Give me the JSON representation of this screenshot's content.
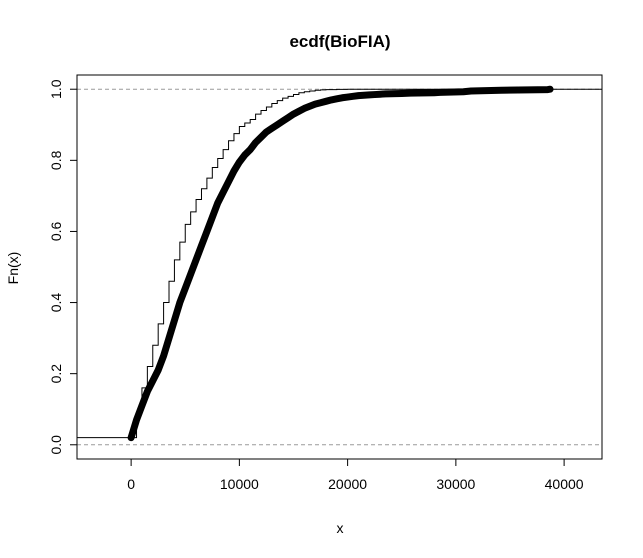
{
  "chart_data": {
    "type": "line",
    "title": "ecdf(BioFIA)",
    "xlabel": "x",
    "ylabel": "Fn(x)",
    "xlim": [
      -5000,
      43500
    ],
    "ylim": [
      -0.04,
      1.04
    ],
    "x_ticks": [
      0,
      10000,
      20000,
      30000,
      40000
    ],
    "x_tick_labels": [
      "0",
      "10000",
      "20000",
      "30000",
      "40000"
    ],
    "y_ticks": [
      0.0,
      0.2,
      0.4,
      0.6,
      0.8,
      1.0
    ],
    "y_tick_labels": [
      "0.0",
      "0.2",
      "0.4",
      "0.6",
      "0.8",
      "1.0"
    ],
    "reference_lines": [
      0,
      1
    ],
    "grid": false,
    "series": [
      {
        "style": "step-line",
        "x": [
          0,
          500,
          1000,
          1500,
          2000,
          2500,
          3000,
          3500,
          4000,
          4500,
          5000,
          5500,
          6000,
          6500,
          7000,
          7500,
          8000,
          8500,
          9000,
          9500,
          10000,
          10500,
          11000,
          11500,
          12000,
          12500,
          13000,
          13500,
          14000,
          14500,
          15000,
          15500,
          16000,
          16500,
          17000,
          17500,
          18000,
          19000,
          20000,
          22000,
          38500
        ],
        "y": [
          0.02,
          0.09,
          0.16,
          0.22,
          0.28,
          0.34,
          0.4,
          0.46,
          0.52,
          0.57,
          0.62,
          0.655,
          0.69,
          0.72,
          0.75,
          0.78,
          0.805,
          0.83,
          0.855,
          0.875,
          0.895,
          0.905,
          0.915,
          0.93,
          0.94,
          0.95,
          0.96,
          0.968,
          0.975,
          0.98,
          0.985,
          0.99,
          0.993,
          0.995,
          0.997,
          0.998,
          0.999,
          0.9995,
          1.0,
          1.0,
          1.0
        ]
      },
      {
        "style": "points",
        "x": [
          0,
          500,
          1000,
          1500,
          2000,
          2500,
          3000,
          3500,
          4000,
          4500,
          5000,
          5500,
          6000,
          6500,
          7000,
          7500,
          8000,
          8500,
          9000,
          9500,
          10000,
          10500,
          11000,
          11500,
          12000,
          12500,
          13000,
          13500,
          14000,
          14500,
          15000,
          15500,
          16000,
          16500,
          17000,
          17500,
          18000,
          18500,
          19000,
          19500,
          20000,
          20500,
          21000,
          21500,
          22000,
          22500,
          23000,
          23500,
          25000,
          25800,
          28000,
          28500,
          30700,
          31400,
          34200,
          38500,
          38700
        ],
        "y": [
          0.02,
          0.07,
          0.11,
          0.15,
          0.18,
          0.21,
          0.25,
          0.3,
          0.35,
          0.4,
          0.44,
          0.48,
          0.52,
          0.56,
          0.6,
          0.64,
          0.68,
          0.71,
          0.74,
          0.77,
          0.795,
          0.815,
          0.83,
          0.85,
          0.865,
          0.88,
          0.89,
          0.9,
          0.91,
          0.92,
          0.93,
          0.938,
          0.946,
          0.952,
          0.958,
          0.962,
          0.966,
          0.97,
          0.973,
          0.976,
          0.978,
          0.98,
          0.982,
          0.983,
          0.984,
          0.985,
          0.986,
          0.987,
          0.988,
          0.989,
          0.99,
          0.991,
          0.993,
          0.995,
          0.997,
          0.999,
          1.0
        ]
      }
    ]
  }
}
